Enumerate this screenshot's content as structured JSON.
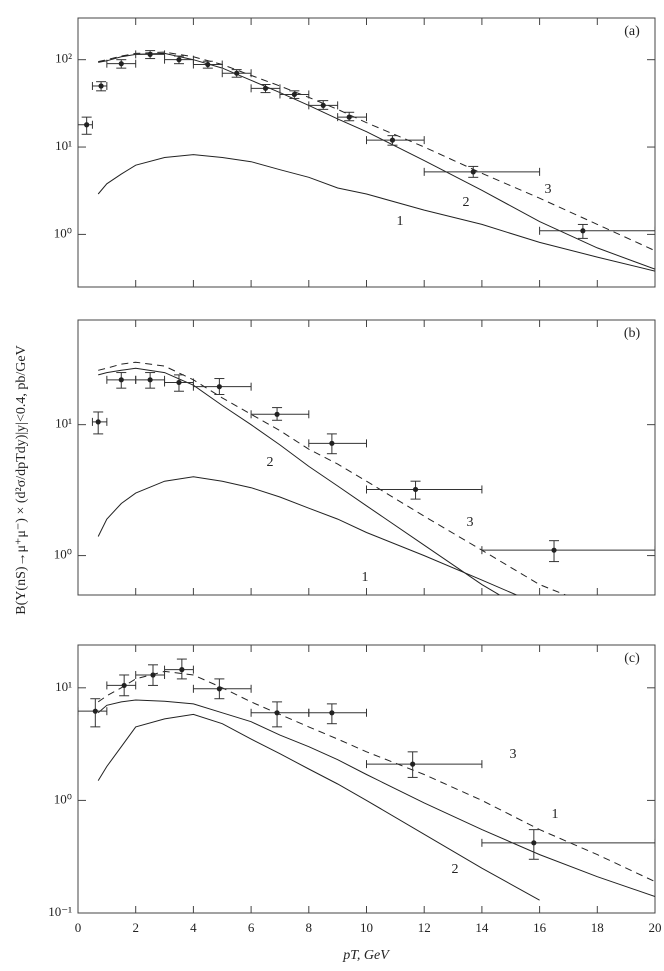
{
  "chart_data": [
    {
      "type": "line",
      "label": "(a)",
      "log_y": true,
      "xlim": [
        0,
        20
      ],
      "xticks": [
        0,
        2,
        4,
        6,
        8,
        10,
        12,
        14,
        16,
        18,
        20
      ],
      "ylim": [
        0.25,
        300
      ],
      "yticks": [
        {
          "value": 1,
          "label": "10⁰"
        },
        {
          "value": 10,
          "label": "10¹"
        },
        {
          "value": 100,
          "label": "10²"
        }
      ],
      "x": [
        0.7,
        1,
        1.5,
        2,
        3,
        4,
        5,
        6,
        7,
        8,
        9,
        10,
        12,
        14,
        16,
        18,
        20
      ],
      "series": [
        {
          "name": "1",
          "color": "#222222",
          "dashed": false,
          "values": [
            2.9,
            3.8,
            4.9,
            6.2,
            7.6,
            8.2,
            7.6,
            6.8,
            5.5,
            4.5,
            3.4,
            2.9,
            1.9,
            1.3,
            0.81,
            0.55,
            0.38
          ]
        },
        {
          "name": "2",
          "color": "#222222",
          "dashed": false,
          "values": [
            93,
            97,
            108,
            115,
            118,
            100,
            80,
            58,
            42,
            30,
            21,
            15,
            7,
            3.2,
            1.4,
            0.7,
            0.4
          ]
        },
        {
          "name": "3",
          "color": "#222222",
          "dashed": true,
          "values": [
            95,
            100,
            110,
            118,
            122,
            108,
            88,
            66,
            50,
            37,
            27,
            19,
            10,
            5,
            2.6,
            1.3,
            0.65
          ]
        }
      ],
      "points": {
        "x": [
          0.3,
          0.8,
          1.5,
          2.5,
          3.5,
          4.5,
          5.5,
          6.5,
          7.5,
          8.5,
          9.4,
          10.9,
          13.7,
          17.5
        ],
        "y": [
          18,
          50,
          90,
          115,
          100,
          88,
          70,
          47,
          40,
          30,
          22,
          12,
          5.2,
          1.1
        ],
        "x_lo": [
          0,
          0.5,
          1,
          2,
          3,
          4,
          5,
          6,
          7,
          8,
          9,
          10,
          12,
          16
        ],
        "x_hi": [
          0.5,
          1,
          2,
          3,
          4,
          5,
          6,
          7,
          8,
          9,
          10,
          12,
          16,
          20
        ],
        "y_lo": [
          14,
          44,
          80,
          103,
          90,
          80,
          63,
          42,
          36,
          27,
          20,
          10.5,
          4.5,
          0.9
        ],
        "y_hi": [
          22,
          56,
          100,
          127,
          110,
          96,
          77,
          52,
          44,
          34,
          25,
          13.5,
          6,
          1.3
        ]
      }
    },
    {
      "type": "line",
      "label": "(b)",
      "log_y": true,
      "xlim": [
        0,
        20
      ],
      "xticks": [
        0,
        2,
        4,
        6,
        8,
        10,
        12,
        14,
        16,
        18,
        20
      ],
      "ylim": [
        0.5,
        63
      ],
      "yticks": [
        {
          "value": 1,
          "label": "10⁰"
        },
        {
          "value": 10,
          "label": "10¹"
        }
      ],
      "x": [
        0.7,
        1,
        1.5,
        2,
        3,
        4,
        5,
        6,
        7,
        8,
        9,
        10,
        12,
        14,
        16,
        18,
        20
      ],
      "series": [
        {
          "name": "1",
          "color": "#222222",
          "dashed": false,
          "values": [
            1.4,
            1.9,
            2.5,
            3,
            3.7,
            4,
            3.7,
            3.3,
            2.8,
            2.3,
            1.9,
            1.5,
            1,
            0.65,
            0.42,
            null,
            null
          ]
        },
        {
          "name": "2",
          "color": "#222222",
          "dashed": false,
          "values": [
            24,
            25,
            26,
            27,
            25,
            20,
            14,
            10,
            7,
            4.8,
            3.4,
            2.4,
            1.2,
            0.6,
            0.33,
            null,
            null
          ]
        },
        {
          "name": "3",
          "color": "#222222",
          "dashed": true,
          "values": [
            26,
            27,
            29,
            30,
            28,
            22,
            16,
            12,
            9,
            6.5,
            5,
            3.7,
            2,
            1.1,
            0.6,
            0.4,
            null
          ]
        }
      ],
      "points": {
        "x": [
          0.7,
          1.5,
          2.5,
          3.5,
          4.9,
          6.9,
          8.8,
          11.7,
          16.5
        ],
        "y": [
          10.5,
          22,
          22,
          21,
          19.5,
          12,
          7.2,
          3.2,
          1.1
        ],
        "x_lo": [
          0.5,
          1,
          2,
          3,
          4,
          6,
          8,
          10,
          14
        ],
        "x_hi": [
          1,
          2,
          3,
          4,
          6,
          8,
          10,
          14,
          20
        ],
        "y_lo": [
          8.5,
          19,
          19,
          18,
          17,
          10.8,
          6,
          2.7,
          0.9
        ],
        "y_hi": [
          12.5,
          25,
          25,
          24,
          22.5,
          13.5,
          8.5,
          3.7,
          1.3
        ]
      }
    },
    {
      "type": "line",
      "label": "(c)",
      "log_y": true,
      "xlim": [
        0,
        20
      ],
      "xticks": [
        0,
        2,
        4,
        6,
        8,
        10,
        12,
        14,
        16,
        18,
        20
      ],
      "ylim": [
        0.1,
        24
      ],
      "yticks": [
        {
          "value": 0.1,
          "label": "10⁻¹"
        },
        {
          "value": 1,
          "label": "10⁰"
        },
        {
          "value": 10,
          "label": "10¹"
        }
      ],
      "xlabel": "pT, GeV",
      "ylabel": "B(Υ(nS)→μ⁺μ⁻) × (d²σ/dpTdy)|y|<0.4, pb/GeV",
      "x": [
        0.7,
        1,
        1.5,
        2,
        3,
        4,
        5,
        6,
        7,
        8,
        9,
        10,
        12,
        14,
        16,
        18,
        20
      ],
      "series": [
        {
          "name": "1",
          "color": "#222222",
          "dashed": false,
          "values": [
            6,
            7,
            7.5,
            7.8,
            7.6,
            7.2,
            6,
            5,
            3.8,
            3,
            2.3,
            1.7,
            0.95,
            0.55,
            0.33,
            0.21,
            0.14
          ]
        },
        {
          "name": "2",
          "color": "#222222",
          "dashed": false,
          "values": [
            1.5,
            2,
            3,
            4.5,
            5.3,
            5.8,
            4.8,
            3.5,
            2.6,
            1.9,
            1.4,
            1.0,
            0.5,
            0.25,
            0.13,
            null,
            null
          ]
        },
        {
          "name": "3",
          "color": "#222222",
          "dashed": true,
          "values": [
            7.5,
            8.5,
            10,
            12,
            14,
            13,
            10,
            7.5,
            5.8,
            4.5,
            3.5,
            2.7,
            1.7,
            1.0,
            0.55,
            0.33,
            0.19
          ]
        }
      ],
      "points": {
        "x": [
          0.6,
          1.6,
          2.6,
          3.6,
          4.9,
          6.9,
          8.8,
          11.6,
          15.8
        ],
        "y": [
          6.2,
          10.5,
          13,
          14.5,
          9.8,
          6,
          6,
          2.1,
          0.42
        ],
        "x_lo": [
          0,
          1,
          2,
          3,
          4,
          6,
          8,
          10,
          14
        ],
        "x_hi": [
          1,
          2,
          3,
          4,
          6,
          8,
          10,
          14,
          20
        ],
        "y_lo": [
          4.5,
          8.5,
          10.5,
          12,
          8,
          4.5,
          4.8,
          1.6,
          0.3
        ],
        "y_hi": [
          8,
          13,
          16,
          18,
          12,
          7.5,
          7.2,
          2.7,
          0.55
        ]
      }
    }
  ]
}
